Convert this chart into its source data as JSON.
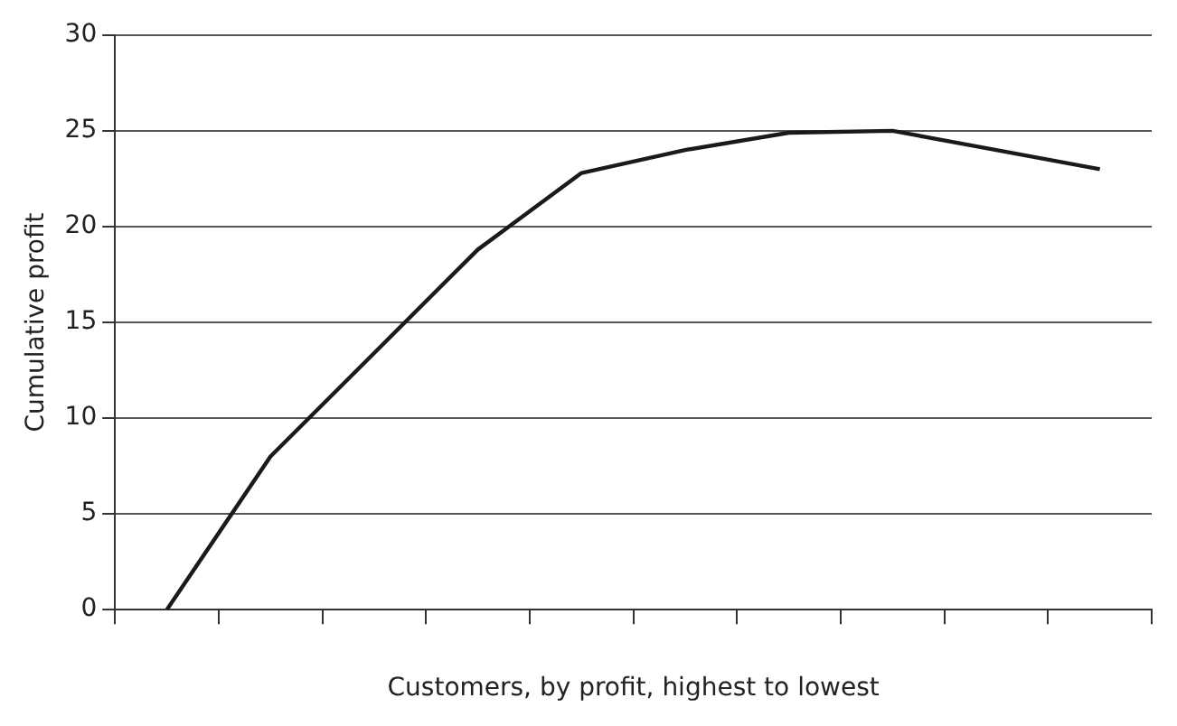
{
  "chart_data": {
    "type": "line",
    "xlabel": "Customers, by profit, highest to lowest",
    "ylabel": "Cumulative profit",
    "categories": [
      null,
      null,
      null,
      null,
      null,
      null,
      null,
      null,
      null,
      null
    ],
    "series": [
      {
        "color": "#1a1a1a",
        "values": [
          0,
          8,
          13.4,
          18.8,
          22.8,
          24,
          24.9,
          25,
          24,
          23
        ]
      }
    ],
    "ylim": [
      0,
      30
    ],
    "yticks": [
      0,
      5,
      10,
      15,
      20,
      25,
      30
    ],
    "grid": "y",
    "legend": false,
    "marker": "none",
    "line_style": "solid"
  }
}
